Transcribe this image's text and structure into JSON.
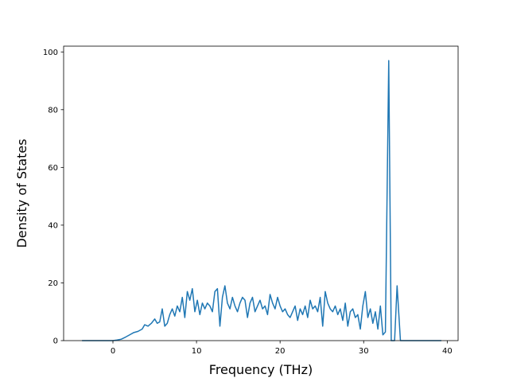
{
  "chart_data": {
    "type": "line",
    "title": "",
    "xlabel": "Frequency (THz)",
    "ylabel": "Density of States",
    "xlim": [
      -5.9,
      41.3
    ],
    "ylim": [
      0,
      102
    ],
    "xticks": [
      0,
      10,
      20,
      30,
      40
    ],
    "yticks": [
      0,
      20,
      40,
      60,
      80,
      100
    ],
    "grid": false,
    "legend": "none",
    "line_color": "#1f77b4",
    "series": [
      {
        "x": [
          -3.7,
          -1,
          0,
          0.5,
          1,
          1.5,
          2,
          2.5,
          3,
          3.5,
          3.8,
          4.2,
          4.6,
          5,
          5.3,
          5.6,
          5.9,
          6.2,
          6.5,
          6.8,
          7.1,
          7.4,
          7.7,
          8,
          8.3,
          8.6,
          8.9,
          9.2,
          9.5,
          9.8,
          10.1,
          10.4,
          10.7,
          11,
          11.3,
          11.6,
          11.9,
          12.2,
          12.5,
          12.8,
          13.1,
          13.4,
          13.7,
          14,
          14.3,
          14.6,
          14.9,
          15.2,
          15.5,
          15.8,
          16.1,
          16.4,
          16.7,
          17,
          17.3,
          17.6,
          17.9,
          18.2,
          18.5,
          18.8,
          19.1,
          19.4,
          19.7,
          20,
          20.3,
          20.6,
          20.9,
          21.2,
          21.5,
          21.8,
          22.1,
          22.4,
          22.7,
          23,
          23.3,
          23.6,
          23.9,
          24.2,
          24.5,
          24.8,
          25.1,
          25.4,
          25.7,
          26,
          26.3,
          26.6,
          26.9,
          27.2,
          27.5,
          27.8,
          28.1,
          28.4,
          28.7,
          29,
          29.3,
          29.6,
          29.9,
          30.2,
          30.5,
          30.8,
          31.1,
          31.4,
          31.7,
          32,
          32.3,
          32.6,
          33,
          33.3,
          33.7,
          34,
          34.4,
          34.8,
          35.5,
          39.3
        ],
        "y": [
          0,
          0,
          0,
          0.2,
          0.5,
          1.2,
          2,
          2.8,
          3.2,
          4,
          5.5,
          5,
          6,
          7.5,
          6,
          6.5,
          11,
          5,
          6,
          9,
          11,
          8.5,
          12,
          10,
          15,
          8,
          17,
          14,
          18,
          10,
          14,
          9,
          13,
          11,
          13,
          12,
          10,
          17,
          18,
          5,
          15,
          19,
          13,
          11,
          15,
          12,
          10,
          13,
          15,
          14,
          8,
          13,
          15,
          10,
          12,
          14,
          11,
          12,
          9,
          16,
          13,
          11,
          15,
          12,
          10,
          11,
          9,
          8,
          10,
          12,
          7,
          11,
          9,
          12,
          8,
          14,
          11,
          12,
          10,
          15,
          5,
          17,
          13,
          11,
          10,
          12,
          9,
          11,
          7,
          13,
          5,
          10,
          11,
          8,
          9,
          4,
          12,
          17,
          8,
          11,
          6,
          10,
          4,
          12,
          2,
          3,
          97,
          0,
          0,
          19,
          0,
          0,
          0,
          0
        ]
      }
    ]
  }
}
